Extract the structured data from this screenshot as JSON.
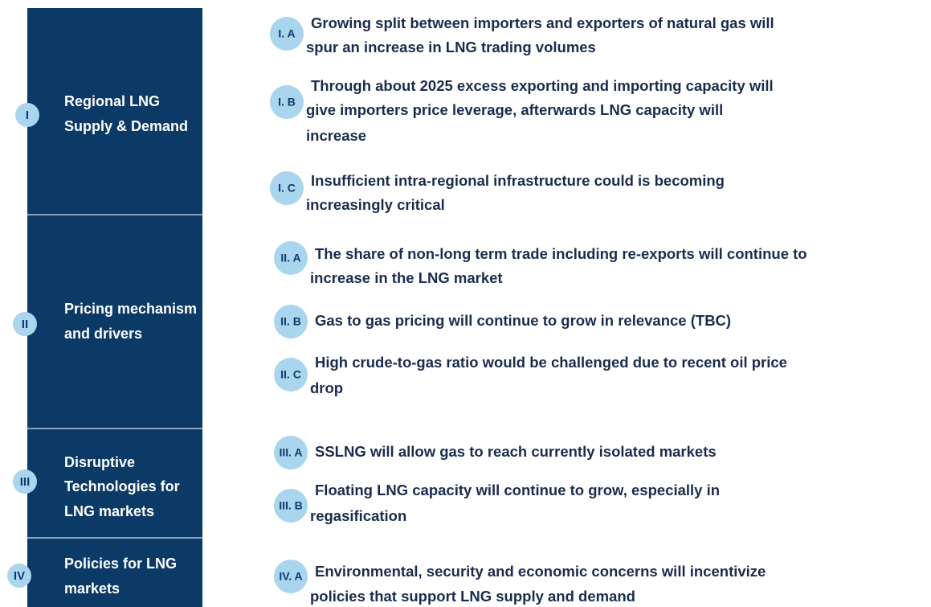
{
  "sections": [
    {
      "id": "I",
      "label": [
        "Regional LNG",
        "Supply & Demand"
      ],
      "items": [
        {
          "id": "I. A",
          "text": [
            "Growing split between importers and exporters of natural gas will",
            "spur an increase in LNG trading volumes"
          ]
        },
        {
          "id": "I. B",
          "text": [
            "Through about 2025 excess exporting and importing capacity will",
            "give importers price leverage, afterwards LNG capacity will",
            "increase"
          ]
        },
        {
          "id": "I. C",
          "text": [
            "Insufficient intra-regional infrastructure could is becoming",
            "increasingly critical"
          ]
        }
      ]
    },
    {
      "id": "II",
      "label": [
        "Pricing mechanism",
        "and drivers"
      ],
      "items": [
        {
          "id": "II. A",
          "text": [
            "The share of non-long term trade including re-exports will continue to",
            "increase in the LNG market"
          ]
        },
        {
          "id": "II. B",
          "text": [
            "Gas to gas pricing will continue to grow in relevance (TBC)"
          ]
        },
        {
          "id": "II. C",
          "text": [
            "High crude-to-gas ratio would be challenged due to recent oil price",
            "drop"
          ]
        }
      ]
    },
    {
      "id": "III",
      "label": [
        "Disruptive",
        "Technologies for",
        "LNG markets"
      ],
      "items": [
        {
          "id": "III. A",
          "text": [
            "SSLNG will allow gas to reach currently isolated markets"
          ]
        },
        {
          "id": "III. B",
          "text": [
            "Floating LNG capacity will continue to grow, especially in",
            "regasification"
          ]
        }
      ]
    },
    {
      "id": "IV",
      "label": [
        "Policies for LNG",
        "markets"
      ],
      "items": [
        {
          "id": "IV. A",
          "text": [
            "Environmental, security and economic concerns will incentivize",
            "policies that support LNG supply and demand"
          ]
        }
      ]
    }
  ]
}
